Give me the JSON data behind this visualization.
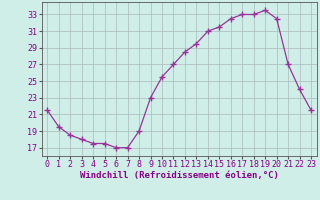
{
  "x": [
    0,
    1,
    2,
    3,
    4,
    5,
    6,
    7,
    8,
    9,
    10,
    11,
    12,
    13,
    14,
    15,
    16,
    17,
    18,
    19,
    20,
    21,
    22,
    23
  ],
  "y": [
    21.5,
    19.5,
    18.5,
    18.0,
    17.5,
    17.5,
    17.0,
    17.0,
    19.0,
    23.0,
    25.5,
    27.0,
    28.5,
    29.5,
    31.0,
    31.5,
    32.5,
    33.0,
    33.0,
    33.5,
    32.5,
    27.0,
    24.0,
    21.5
  ],
  "line_color": "#993399",
  "marker": "+",
  "marker_size": 4,
  "marker_linewidth": 1.0,
  "line_width": 0.9,
  "background_color": "#d0eee8",
  "grid_color": "#aabbbb",
  "xlabel": "Windchill (Refroidissement éolien,°C)",
  "ylabel": "",
  "ytick_values": [
    17,
    19,
    21,
    23,
    25,
    27,
    29,
    31,
    33
  ],
  "xtick_values": [
    0,
    1,
    2,
    3,
    4,
    5,
    6,
    7,
    8,
    9,
    10,
    11,
    12,
    13,
    14,
    15,
    16,
    17,
    18,
    19,
    20,
    21,
    22,
    23
  ],
  "ylim": [
    16.0,
    34.5
  ],
  "xlim": [
    -0.5,
    23.5
  ],
  "xlabel_fontsize": 6.5,
  "tick_fontsize": 6.0,
  "label_color": "#880088",
  "spine_color": "#555555"
}
